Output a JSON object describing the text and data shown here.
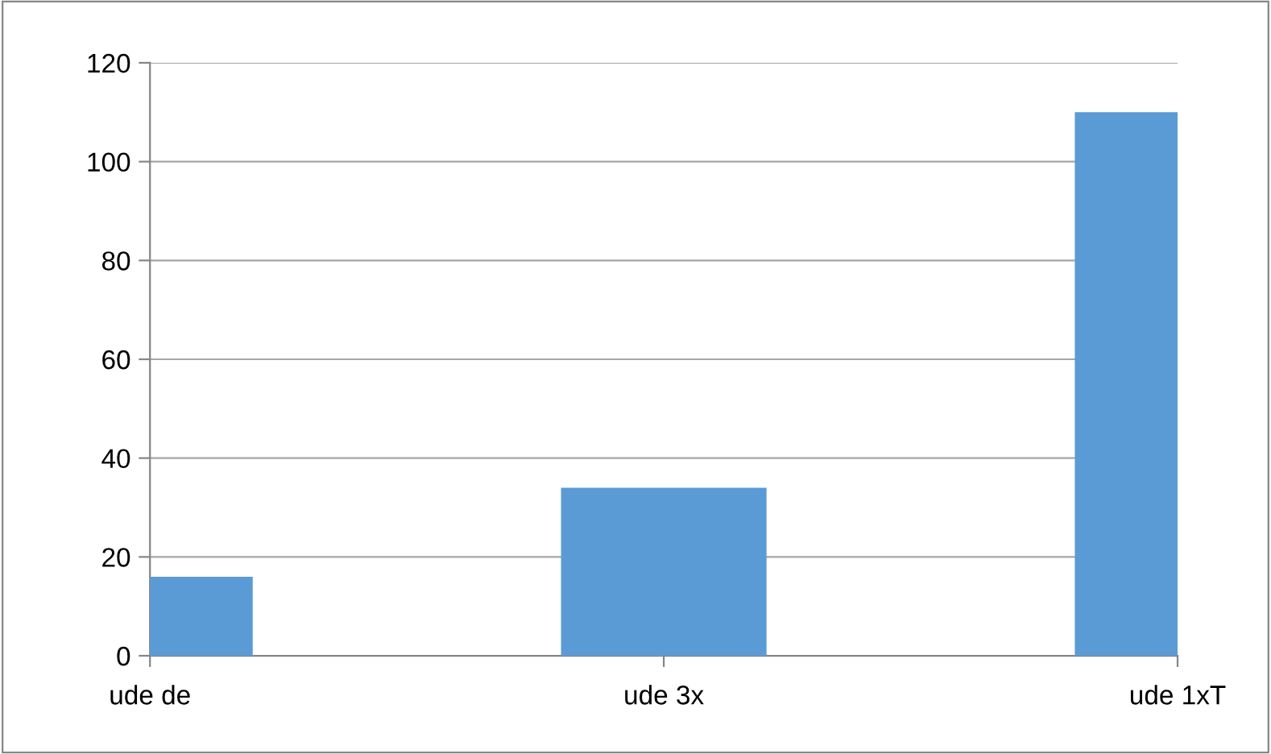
{
  "chart_data": {
    "type": "bar",
    "categories": [
      "ude de",
      "ude 3x",
      "ude 1xT"
    ],
    "values": [
      16,
      34,
      110
    ],
    "color": "#5b9bd5",
    "ylim": [
      0,
      120
    ],
    "yticks": [
      0,
      20,
      40,
      60,
      80,
      100,
      120
    ],
    "grid": "y"
  }
}
